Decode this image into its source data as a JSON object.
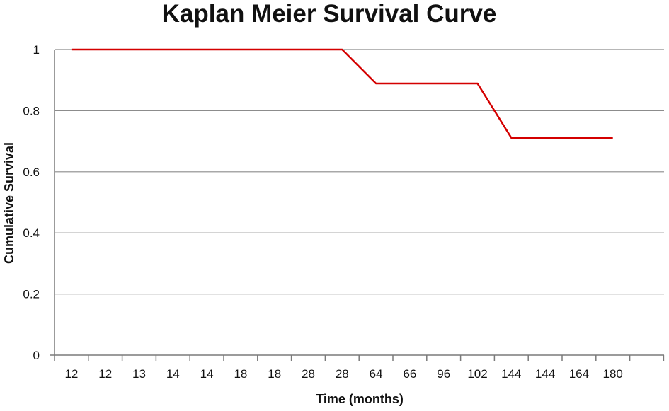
{
  "chart_data": {
    "type": "line",
    "title": "Kaplan Meier Survival Curve",
    "xlabel": "Time (months)",
    "ylabel": "Cumulative Survival",
    "categories": [
      "12",
      "12",
      "13",
      "14",
      "14",
      "18",
      "18",
      "28",
      "28",
      "64",
      "66",
      "96",
      "102",
      "144",
      "144",
      "164",
      "180"
    ],
    "ylim": [
      0,
      1
    ],
    "yticks": [
      "0",
      "0.2",
      "0.4",
      "0.6",
      "0.8",
      "1"
    ],
    "ytick_values": [
      0,
      0.2,
      0.4,
      0.6,
      0.8,
      1
    ],
    "grid": "horizontal",
    "series": [
      {
        "values": [
          1,
          1,
          1,
          1,
          1,
          1,
          1,
          1,
          1,
          0.889,
          0.889,
          0.889,
          0.889,
          0.711,
          0.711,
          0.711,
          0.711
        ],
        "color": "#d40000"
      }
    ]
  }
}
